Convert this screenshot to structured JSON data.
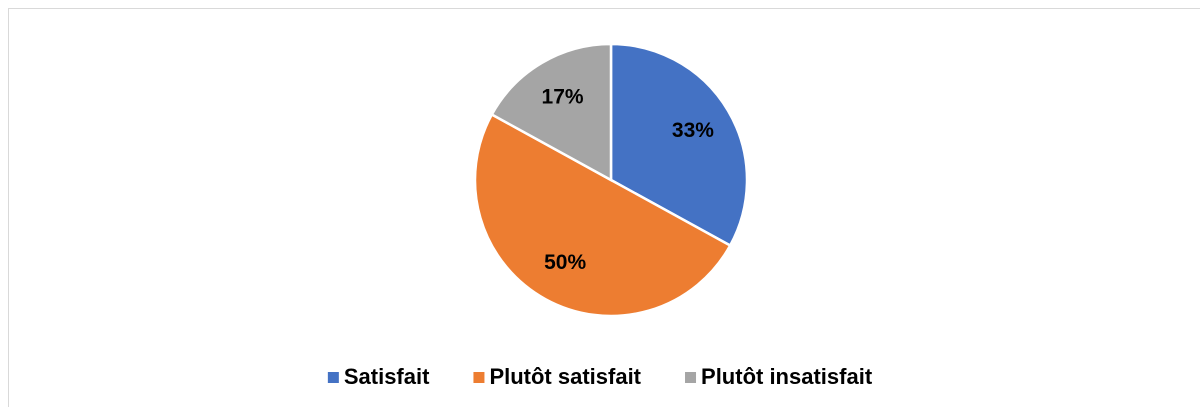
{
  "chart_data": {
    "type": "pie",
    "categories": [
      "Satisfait",
      "Plutôt satisfait",
      "Plutôt insatisfait"
    ],
    "values": [
      33,
      50,
      17
    ],
    "value_labels": [
      "33%",
      "50%",
      "17%"
    ],
    "colors": [
      "#4472c4",
      "#ed7d31",
      "#a5a5a5"
    ],
    "legend": "bottom"
  }
}
